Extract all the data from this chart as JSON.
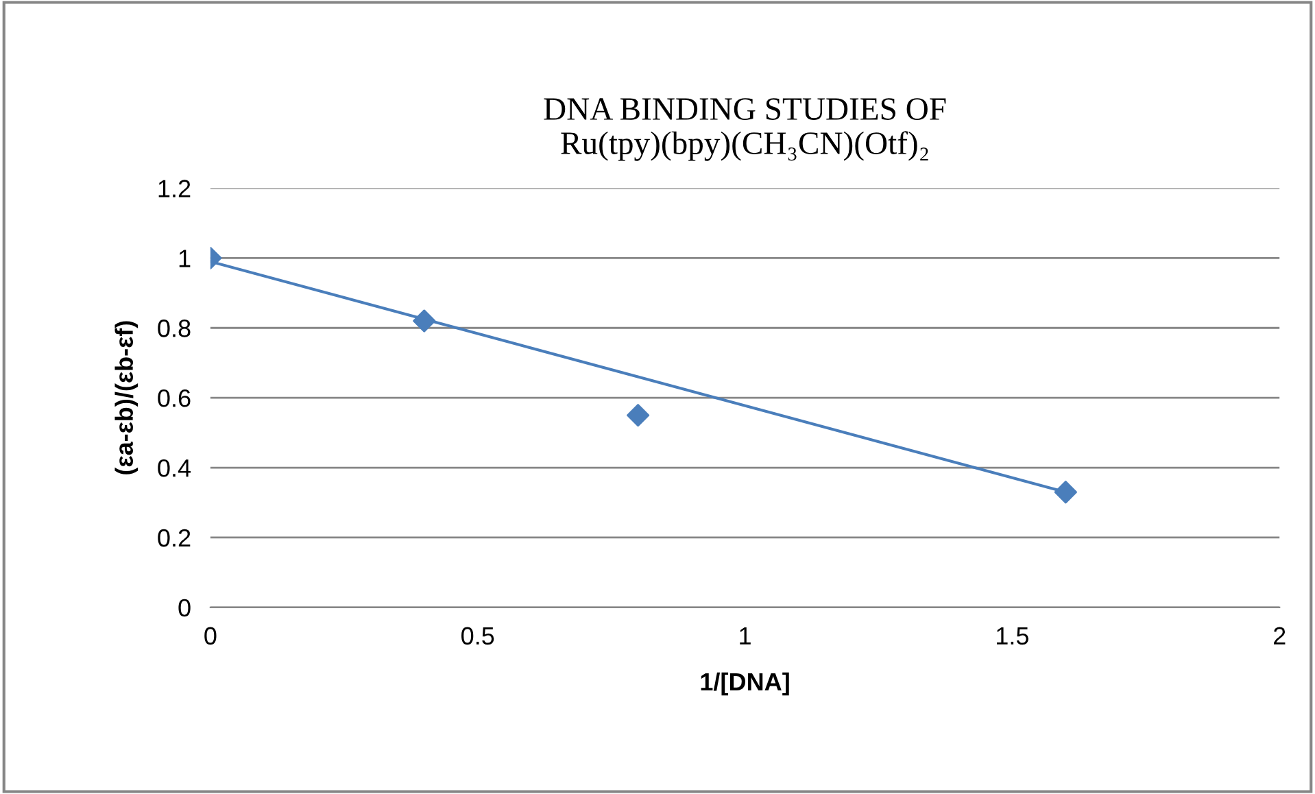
{
  "chart_data": {
    "type": "scatter",
    "title": "DNA BINDING STUDIES OF\nRu(tpy)(bpy)(CH₃CN)(Otf)₂",
    "xlabel": "1/[DNA]",
    "ylabel": "(εa-εb)/(εb-εf)",
    "series": [
      {
        "x": [
          0,
          0.4,
          0.8,
          1.6
        ],
        "values": [
          1.0,
          0.82,
          0.55,
          0.33
        ],
        "color": "#4a7ebb",
        "marker": "diamond"
      },
      {
        "type": "line",
        "x": [
          0,
          1.6
        ],
        "values": [
          0.99,
          0.33
        ],
        "color": "#4a7ebb",
        "marker": "none",
        "line_style": "solid"
      }
    ],
    "xlim": [
      0,
      2
    ],
    "xticks": [
      0,
      0.5,
      1,
      1.5,
      2
    ],
    "ylim": [
      0,
      1.2
    ],
    "yticks": [
      0,
      0.2,
      0.4,
      0.6,
      0.8,
      1,
      1.2
    ],
    "grid": "y",
    "legend": false
  }
}
